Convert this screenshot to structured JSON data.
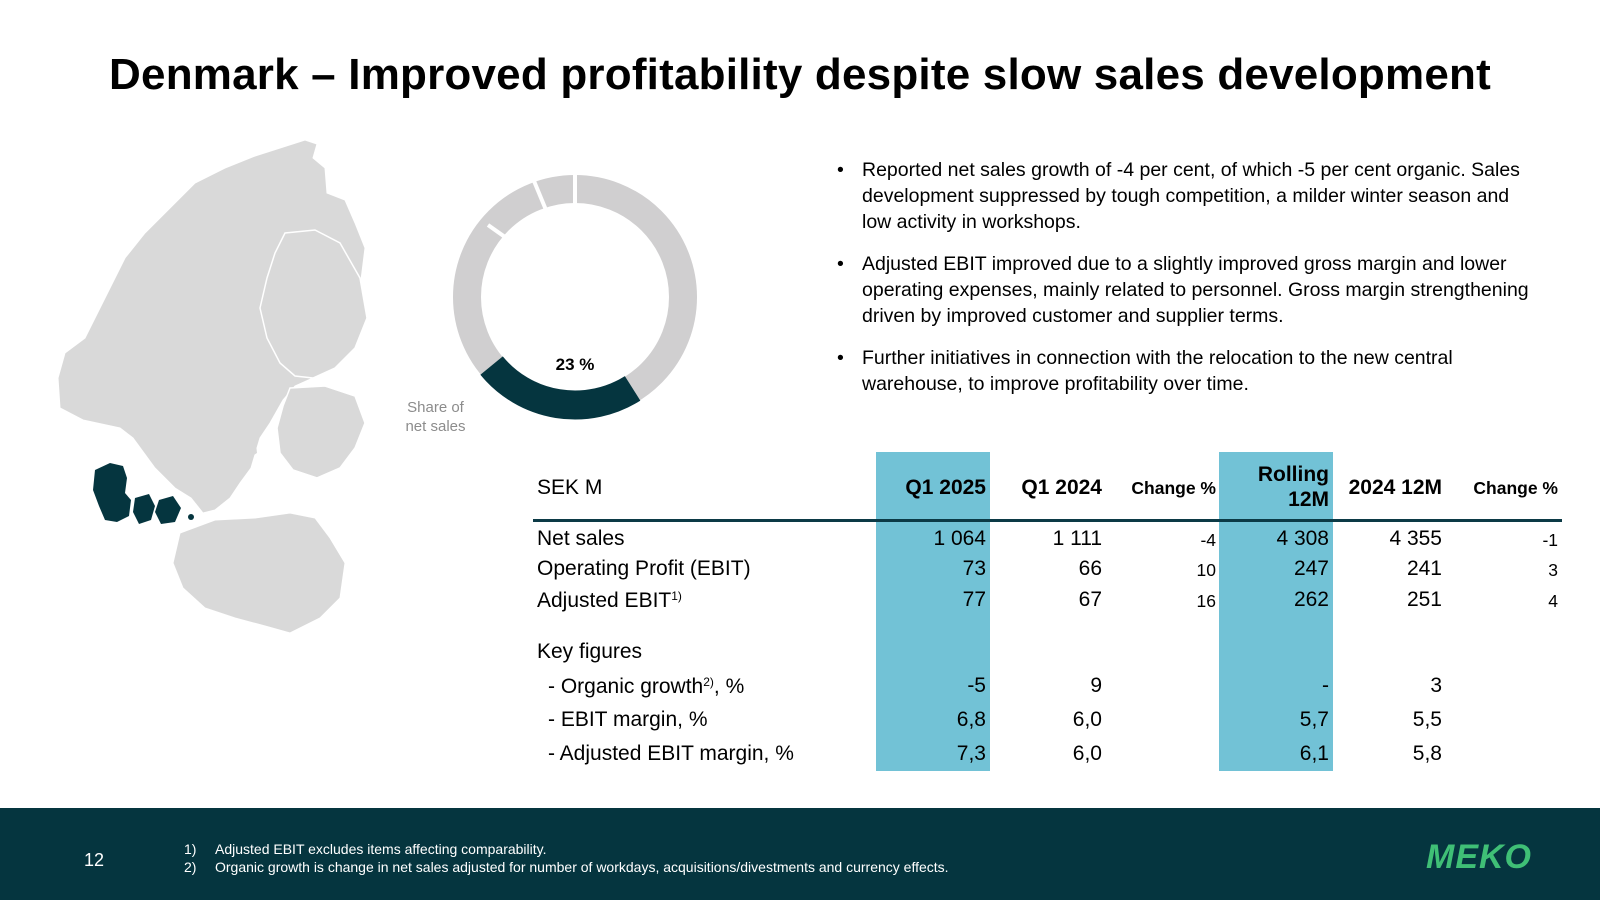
{
  "title": "Denmark – Improved profitability despite slow sales development",
  "donut": {
    "value_label": "23 %",
    "share_percent": 23,
    "caption_line1": "Share of",
    "caption_line2": "net sales"
  },
  "bullets": [
    "Reported net sales growth of -4 per cent, of which -5 per cent organic. Sales development suppressed by tough competition, a milder winter season and low activity in workshops.",
    "Adjusted EBIT improved due to a slightly improved gross margin and lower operating expenses, mainly related to personnel. Gross margin strengthening driven by improved customer and supplier terms.",
    "Further initiatives in connection with the relocation to the new central warehouse, to improve profitability over time."
  ],
  "bullet_symbol": "•",
  "table": {
    "header": {
      "label": "SEK M",
      "q1_2025": "Q1 2025",
      "q1_2024": "Q1 2024",
      "change": "Change %",
      "rolling_line1": "Rolling",
      "rolling_line2": "12M",
      "full_2024": "2024 12M",
      "change12": "Change %"
    },
    "rows": {
      "net_sales": {
        "label": "Net sales",
        "q1_2025": "1 064",
        "q1_2024": "1 111",
        "change": "-4",
        "rolling": "4 308",
        "full_2024": "4 355",
        "change12": "-1"
      },
      "ebit": {
        "label": "Operating Profit (EBIT)",
        "q1_2025": "73",
        "q1_2024": "66",
        "change": "10",
        "rolling": "247",
        "full_2024": "241",
        "change12": "3"
      },
      "adj_ebit": {
        "label": "Adjusted EBIT",
        "sup": "1)",
        "q1_2025": "77",
        "q1_2024": "67",
        "change": "16",
        "rolling": "262",
        "full_2024": "251",
        "change12": "4"
      },
      "key_figures": {
        "label": "Key figures"
      },
      "organic": {
        "label_pre": "- Organic growth",
        "sup": "2)",
        "label_post": ", %",
        "q1_2025": "-5",
        "q1_2024": "9",
        "rolling": "-",
        "full_2024": "3"
      },
      "ebit_margin": {
        "label": "- EBIT margin, %",
        "q1_2025": "6,8",
        "q1_2024": "6,0",
        "rolling": "5,7",
        "full_2024": "5,5"
      },
      "adj_margin": {
        "label": "- Adjusted EBIT margin, %",
        "q1_2025": "7,3",
        "q1_2024": "6,0",
        "rolling": "6,1",
        "full_2024": "5,8"
      }
    }
  },
  "footer": {
    "page_number": "12",
    "notes": [
      {
        "num": "1)",
        "text": "Adjusted EBIT excludes items affecting comparability."
      },
      {
        "num": "2)",
        "text": "Organic growth is change in net sales adjusted for number of workdays, acquisitions/divestments and currency effects."
      }
    ],
    "logo_text": "MEKO"
  },
  "colors": {
    "highlight": "#72c2d6",
    "dark_teal": "#05353f",
    "donut_grey": "#d0cfd0",
    "map_grey": "#d9d9d9",
    "logo_green": "#3fbf76"
  }
}
